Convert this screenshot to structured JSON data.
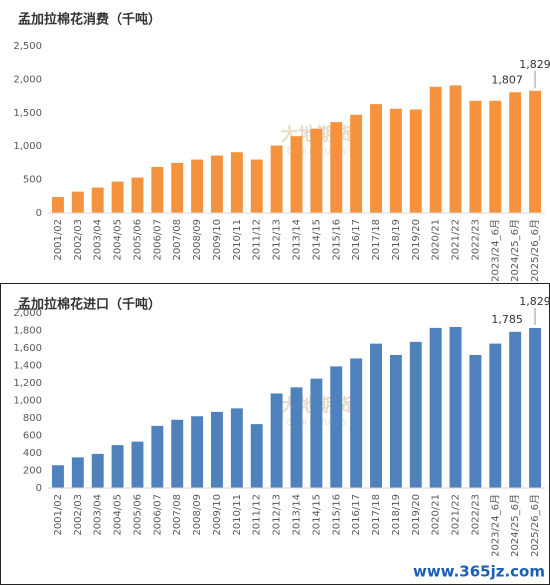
{
  "chart_data": [
    {
      "type": "bar",
      "title": "孟加拉棉花消费（千吨）",
      "watermark": "大地期货",
      "watermark_sub": "DADI FUTURES",
      "categories": [
        "2001/02",
        "2002/03",
        "2003/04",
        "2004/05",
        "2005/06",
        "2006/07",
        "2007/08",
        "2008/09",
        "2009/10",
        "2010/11",
        "2011/12",
        "2012/13",
        "2013/14",
        "2014/15",
        "2015/16",
        "2016/17",
        "2017/18",
        "2018/19",
        "2019/20",
        "2020/21",
        "2021/22",
        "2022/23",
        "2023/24_6月",
        "2024/25_6月",
        "2025/26_6月"
      ],
      "values": [
        240,
        320,
        380,
        470,
        530,
        690,
        750,
        800,
        860,
        910,
        800,
        1010,
        1150,
        1260,
        1360,
        1470,
        1630,
        1560,
        1550,
        1890,
        1910,
        1680,
        1680,
        1807,
        1829
      ],
      "value_labels": [
        null,
        null,
        null,
        null,
        null,
        null,
        null,
        null,
        null,
        null,
        null,
        null,
        null,
        null,
        null,
        null,
        null,
        null,
        null,
        null,
        null,
        null,
        null,
        "1,807",
        "1,829"
      ],
      "color": "#f5923e",
      "ylim": [
        0,
        2500
      ],
      "yticks": [
        0,
        500,
        {
          "value": 1000,
          "label": "1,000"
        },
        {
          "value": 1500,
          "label": "1,500"
        },
        {
          "value": 2000,
          "label": "2,000"
        },
        {
          "value": 2500,
          "label": "2,500"
        }
      ]
    },
    {
      "type": "bar",
      "title": "孟加拉棉花进口（千吨）",
      "watermark": "大地期货",
      "watermark_sub": "DADI FUTURES",
      "categories": [
        "2001/02",
        "2002/03",
        "2003/04",
        "2004/05",
        "2005/06",
        "2006/07",
        "2007/08",
        "2008/09",
        "2009/10",
        "2010/11",
        "2011/12",
        "2012/13",
        "2013/14",
        "2014/15",
        "2015/16",
        "2016/17",
        "2017/18",
        "2018/19",
        "2019/20",
        "2020/21",
        "2021/22",
        "2022/23",
        "2023/24_6月",
        "2024/25_6月",
        "2025/26_6月"
      ],
      "values": [
        260,
        350,
        390,
        490,
        530,
        710,
        780,
        820,
        870,
        910,
        730,
        1080,
        1150,
        1250,
        1390,
        1480,
        1650,
        1520,
        1670,
        1830,
        1840,
        1520,
        1650,
        1785,
        1829
      ],
      "value_labels": [
        null,
        null,
        null,
        null,
        null,
        null,
        null,
        null,
        null,
        null,
        null,
        null,
        null,
        null,
        null,
        null,
        null,
        null,
        null,
        null,
        null,
        null,
        null,
        "1,785",
        "1,829"
      ],
      "color": "#4f81bd",
      "ylim": [
        0,
        2000
      ],
      "yticks": [
        0,
        200,
        400,
        600,
        800,
        {
          "value": 1000,
          "label": "1,000"
        },
        {
          "value": 1200,
          "label": "1,200"
        },
        {
          "value": 1400,
          "label": "1,400"
        },
        {
          "value": 1600,
          "label": "1,600"
        },
        {
          "value": 1800,
          "label": "1,800"
        },
        {
          "value": 2000,
          "label": "2,000"
        }
      ]
    }
  ],
  "site_watermark": "www.365jz.com"
}
